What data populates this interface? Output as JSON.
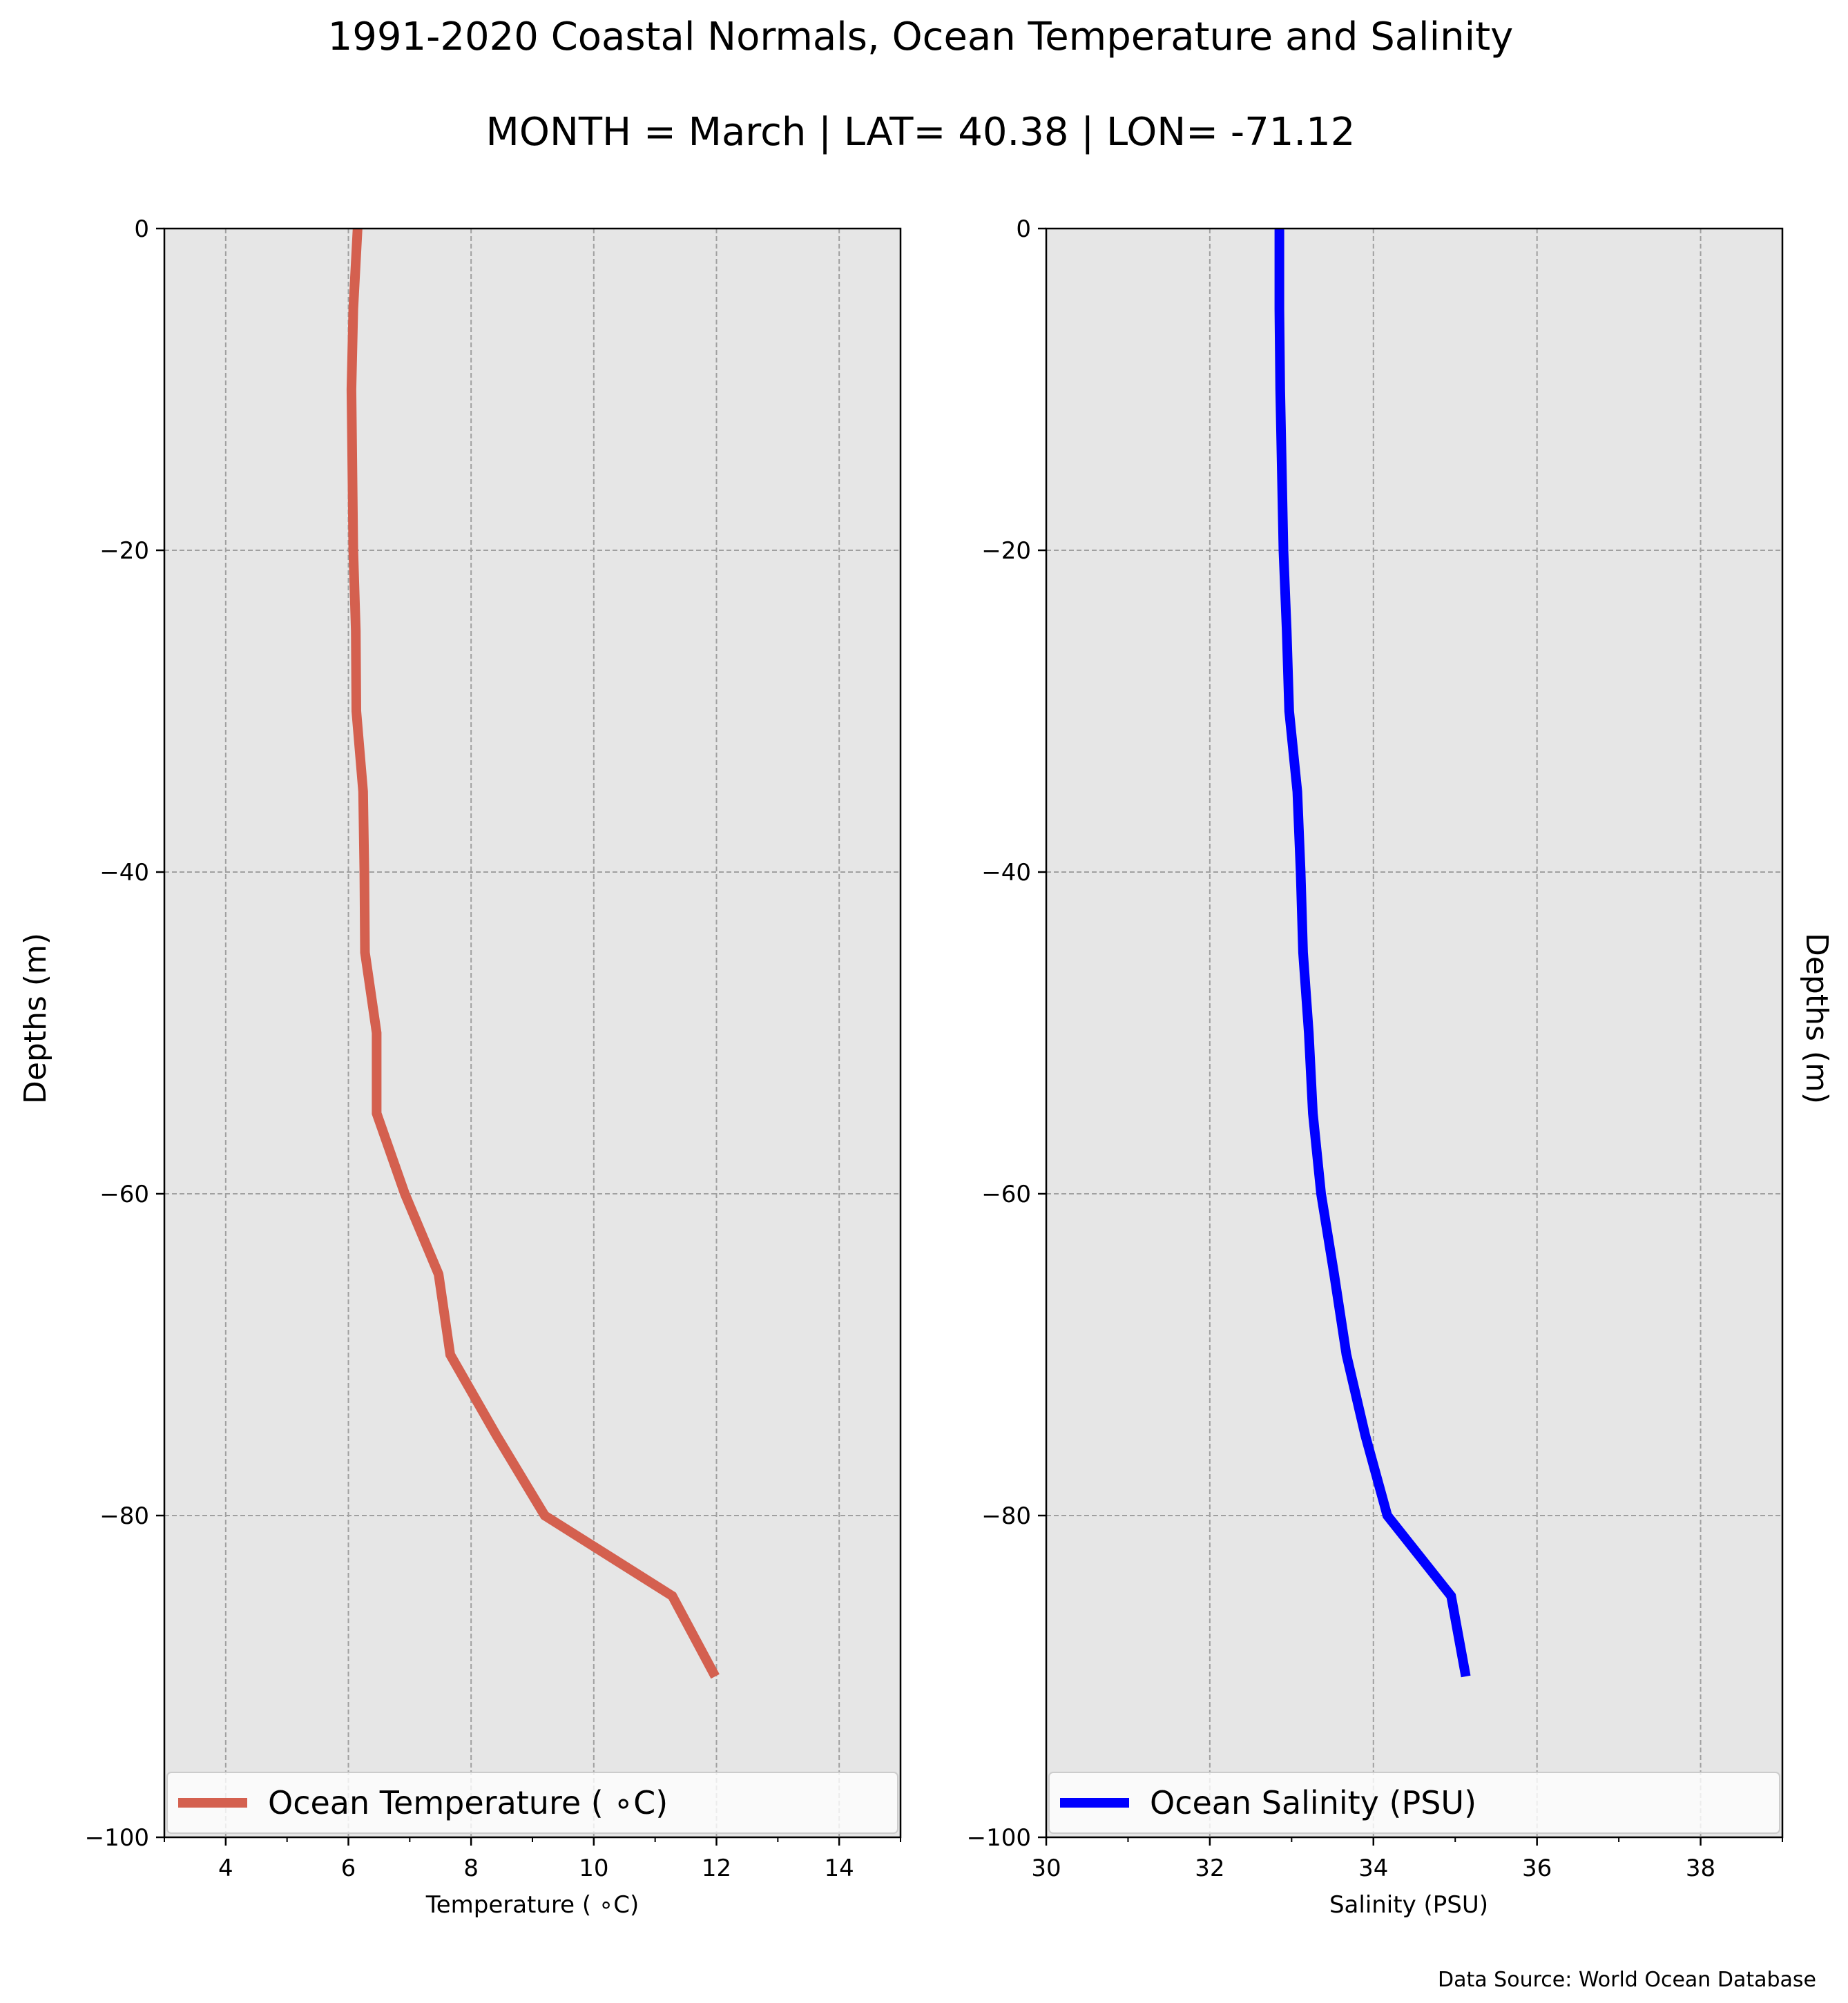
{
  "figure": {
    "title_line1": "1991-2020 Coastal Normals, Ocean Temperature and Salinity",
    "title_line2": "MONTH = March | LAT= 40.38 | LON= -71.12",
    "source_note": "Data Source: World Ocean Database",
    "ylabel_left": "Depths (m)",
    "ylabel_right": "Depths (m)",
    "background_color": "#e6e6e6"
  },
  "chart_data": [
    {
      "type": "line",
      "title": "",
      "xlabel": "Temperature ($^\\circ$C)",
      "xlabel_display": "Temperature ( ∘C)",
      "ylabel": "Depths (m)",
      "xlim": [
        3,
        15
      ],
      "ylim": [
        -100,
        0
      ],
      "xticks": [
        4,
        6,
        8,
        10,
        12,
        14
      ],
      "xticks_minor": [
        3,
        5,
        7,
        9,
        11,
        13,
        15
      ],
      "yticks": [
        0,
        -20,
        -40,
        -60,
        -80,
        -100
      ],
      "ytick_labels": [
        "0",
        "−20",
        "−40",
        "−60",
        "−80",
        "−100"
      ],
      "grid": true,
      "legend_position": "bottom",
      "series": [
        {
          "name": "Ocean Temperature ( ∘C)",
          "color": "#d4604f",
          "x": [
            6.15,
            6.08,
            6.05,
            6.08,
            6.12,
            6.13,
            6.24,
            6.26,
            6.27,
            6.46,
            6.46,
            6.92,
            7.47,
            7.66,
            8.41,
            9.2,
            11.28,
            11.98
          ],
          "y": [
            0,
            -5,
            -10,
            -20,
            -25,
            -30,
            -35,
            -40,
            -45,
            -50,
            -55,
            -60,
            -65,
            -70,
            -75,
            -80,
            -85,
            -90
          ]
        }
      ]
    },
    {
      "type": "line",
      "title": "",
      "xlabel": "Salinity (PSU)",
      "ylabel": "Depths (m)",
      "xlim": [
        30,
        39
      ],
      "ylim": [
        -100,
        0
      ],
      "xticks": [
        30,
        32,
        34,
        36,
        38
      ],
      "xticks_minor": [
        31,
        33,
        35,
        37,
        39
      ],
      "yticks": [
        0,
        -20,
        -40,
        -60,
        -80,
        -100
      ],
      "ytick_labels": [
        "0",
        "−20",
        "−40",
        "−60",
        "−80",
        "−100"
      ],
      "grid": true,
      "legend_position": "bottom",
      "series": [
        {
          "name": "Ocean Salinity (PSU)",
          "color": "#0000ff",
          "x": [
            32.85,
            32.85,
            32.86,
            32.9,
            32.94,
            32.97,
            33.07,
            33.11,
            33.14,
            33.21,
            33.26,
            33.36,
            33.52,
            33.67,
            33.9,
            34.17,
            34.95,
            35.13
          ],
          "y": [
            0,
            -5,
            -10,
            -20,
            -25,
            -30,
            -35,
            -40,
            -45,
            -50,
            -55,
            -60,
            -65,
            -70,
            -75,
            -80,
            -85,
            -90
          ]
        }
      ]
    }
  ]
}
